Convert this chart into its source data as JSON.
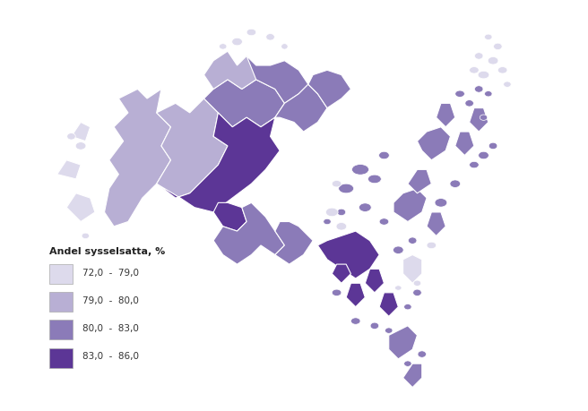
{
  "title": "",
  "legend_title": "Andel sysselsatta, %",
  "legend_items": [
    {
      "label": "72,0  -  79,0",
      "color": "#dddaec"
    },
    {
      "label": "79,0  -  80,0",
      "color": "#b8afd4"
    },
    {
      "label": "80,0  -  83,0",
      "color": "#8b7bb8"
    },
    {
      "label": "83,0  -  86,0",
      "color": "#5c3696"
    }
  ],
  "background_color": "#ffffff",
  "colors": {
    "72_79": "#dddaec",
    "79_80": "#b8afd4",
    "80_83": "#8b7bb8",
    "83_86": "#5c3696"
  }
}
